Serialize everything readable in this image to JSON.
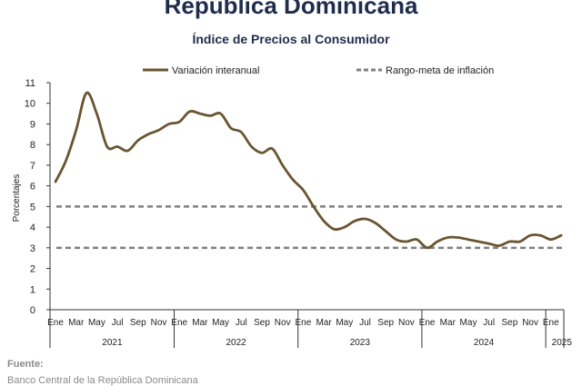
{
  "header": {
    "title": "República Dominicana",
    "subtitle": "Índice de Precios al Consumidor"
  },
  "source": {
    "label": "Fuente:",
    "text": "Banco Central de la República Dominicana"
  },
  "colors": {
    "series": "#6b5530",
    "target": "#808080",
    "axis": "#333333"
  },
  "chart_data": {
    "type": "line",
    "ylabel": "Porcentajes",
    "ylim": [
      0,
      11
    ],
    "yticks": [
      0,
      1,
      2,
      3,
      4,
      5,
      6,
      7,
      8,
      9,
      10,
      11
    ],
    "grid": false,
    "legend_position": "top",
    "month_tick_labels": [
      "Ene",
      "Mar",
      "May",
      "Jul",
      "Sep",
      "Nov",
      "Ene",
      "Mar",
      "May",
      "Jul",
      "Sep",
      "Nov",
      "Ene",
      "Mar",
      "May",
      "Jul",
      "Sep",
      "Nov",
      "Ene",
      "Mar",
      "May",
      "Jul",
      "Sep",
      "Nov",
      "Ene"
    ],
    "year_labels": [
      "2021",
      "2022",
      "2023",
      "2024",
      "2025"
    ],
    "series": [
      {
        "name": "Variación interanual",
        "style": "solid",
        "x": [
          "2021-01",
          "2021-02",
          "2021-03",
          "2021-04",
          "2021-05",
          "2021-06",
          "2021-07",
          "2021-08",
          "2021-09",
          "2021-10",
          "2021-11",
          "2021-12",
          "2022-01",
          "2022-02",
          "2022-03",
          "2022-04",
          "2022-05",
          "2022-06",
          "2022-07",
          "2022-08",
          "2022-09",
          "2022-10",
          "2022-11",
          "2022-12",
          "2023-01",
          "2023-02",
          "2023-03",
          "2023-04",
          "2023-05",
          "2023-06",
          "2023-07",
          "2023-08",
          "2023-09",
          "2023-10",
          "2023-11",
          "2023-12",
          "2024-01",
          "2024-02",
          "2024-03",
          "2024-04",
          "2024-05",
          "2024-06",
          "2024-07",
          "2024-08",
          "2024-09",
          "2024-10",
          "2024-11",
          "2024-12",
          "2025-01",
          "2025-02"
        ],
        "values": [
          6.2,
          7.2,
          8.7,
          10.5,
          9.5,
          7.9,
          7.9,
          7.7,
          8.2,
          8.5,
          8.7,
          9.0,
          9.1,
          9.6,
          9.5,
          9.4,
          9.5,
          8.8,
          8.6,
          7.9,
          7.6,
          7.8,
          7.0,
          6.3,
          5.8,
          5.0,
          4.3,
          3.9,
          4.0,
          4.3,
          4.4,
          4.2,
          3.8,
          3.4,
          3.3,
          3.4,
          3.0,
          3.3,
          3.5,
          3.5,
          3.4,
          3.3,
          3.2,
          3.1,
          3.3,
          3.3,
          3.6,
          3.6,
          3.4,
          3.6
        ]
      },
      {
        "name": "Rango-meta de inflación",
        "style": "dashed",
        "bounds": [
          3,
          5
        ]
      }
    ]
  }
}
